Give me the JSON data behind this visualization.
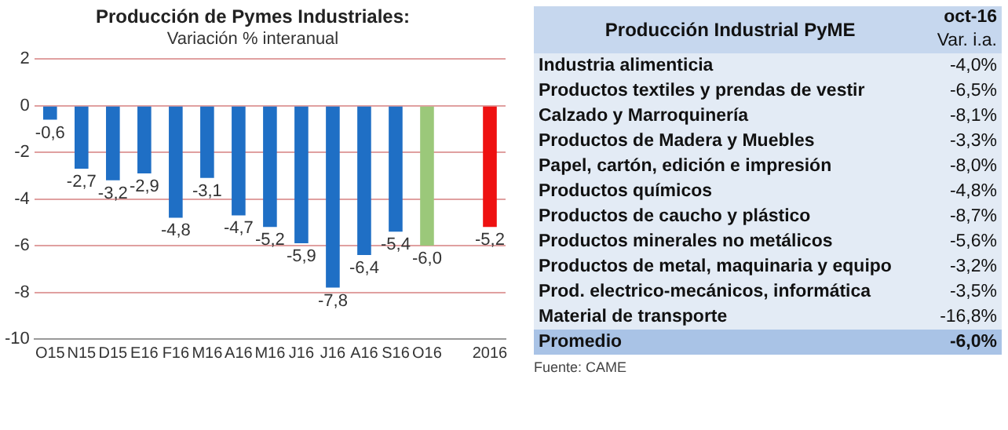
{
  "chart_data": [
    {
      "type": "bar",
      "title": "Producción de Pymes Industriales:",
      "subtitle": "Variación % interanual",
      "categories": [
        "O15",
        "N15",
        "D15",
        "E16",
        "F16",
        "M16",
        "A16",
        "M16",
        "J16",
        "J16",
        "A16",
        "S16",
        "O16",
        null,
        "2016"
      ],
      "values": [
        -0.6,
        -2.7,
        -3.2,
        -2.9,
        -4.8,
        -3.1,
        -4.7,
        -5.2,
        -5.9,
        -7.8,
        -6.4,
        -5.4,
        -6.0,
        null,
        -5.2
      ],
      "colors": [
        "#1f6fc5",
        "#1f6fc5",
        "#1f6fc5",
        "#1f6fc5",
        "#1f6fc5",
        "#1f6fc5",
        "#1f6fc5",
        "#1f6fc5",
        "#1f6fc5",
        "#1f6fc5",
        "#1f6fc5",
        "#1f6fc5",
        "#9bc87a",
        "#1f6fc5",
        "#ee1111"
      ],
      "value_labels": [
        "-0,6",
        "-2,7",
        "-3,2",
        "-2,9",
        "-4,8",
        "-3,1",
        "-4,7",
        "-5,2",
        "-5,9",
        "-7,8",
        "-6,4",
        "-5,4",
        "-6,0",
        null,
        "-5,2"
      ],
      "ylim": [
        -10,
        2
      ],
      "yticks": [
        -10,
        -8,
        -6,
        -4,
        -2,
        0,
        2
      ],
      "grid": "y"
    },
    {
      "type": "other",
      "title": "Producción Industrial PyME",
      "subtitle": "oct-16",
      "ylabel": "Var. i.a.",
      "categories": [
        "Industria alimenticia",
        "Productos textiles y prendas de vestir",
        "Calzado y Marroquinería",
        "Productos de Madera y Muebles",
        "Papel, cartón, edición e impresión",
        "Productos químicos",
        "Productos de caucho y plástico",
        "Productos minerales no metálicos",
        "Productos de metal, maquinaria y equipo",
        "Prod. electrico-mecánicos, informática",
        "Material de transporte",
        "Promedio"
      ],
      "value_labels": [
        "-4,0%",
        "-6,5%",
        "-8,1%",
        "-3,3%",
        "-8,0%",
        "-4,8%",
        "-8,7%",
        "-5,6%",
        "-3,2%",
        "-3,5%",
        "-16,8%",
        "-6,0%"
      ],
      "annotations": [
        "Fuente: CAME"
      ]
    }
  ]
}
